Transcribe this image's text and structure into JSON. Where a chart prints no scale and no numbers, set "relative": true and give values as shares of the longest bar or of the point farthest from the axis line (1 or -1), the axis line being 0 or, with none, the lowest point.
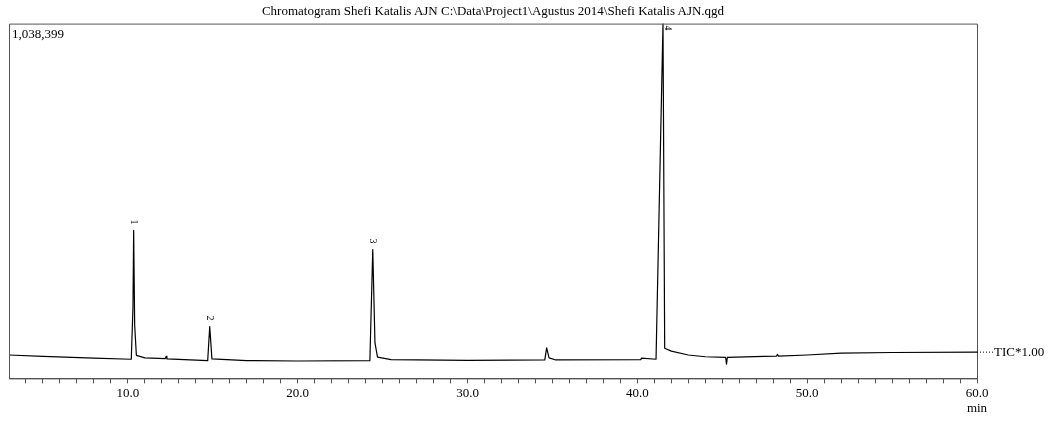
{
  "chart_data": {
    "type": "line",
    "title": "Chromatogram Shefi Katalis AJN C:\\Data\\Project1\\Agustus 2014\\Shefi Katalis AJN.qgd",
    "xlabel": "min",
    "relative": true,
    "marker": "none",
    "xlim": [
      3,
      60
    ],
    "xticks": [
      {
        "value": 4,
        "label": null
      },
      {
        "value": 5,
        "label": null
      },
      {
        "value": 6,
        "label": null
      },
      {
        "value": 7,
        "label": null
      },
      {
        "value": 8,
        "label": null
      },
      {
        "value": 9,
        "label": null
      },
      {
        "value": 10,
        "label": "10.0"
      },
      {
        "value": 11,
        "label": null
      },
      {
        "value": 12,
        "label": null
      },
      {
        "value": 13,
        "label": null
      },
      {
        "value": 14,
        "label": null
      },
      {
        "value": 15,
        "label": null
      },
      {
        "value": 16,
        "label": null
      },
      {
        "value": 17,
        "label": null
      },
      {
        "value": 18,
        "label": null
      },
      {
        "value": 19,
        "label": null
      },
      {
        "value": 20,
        "label": "20.0"
      },
      {
        "value": 21,
        "label": null
      },
      {
        "value": 22,
        "label": null
      },
      {
        "value": 23,
        "label": null
      },
      {
        "value": 24,
        "label": null
      },
      {
        "value": 25,
        "label": null
      },
      {
        "value": 26,
        "label": null
      },
      {
        "value": 27,
        "label": null
      },
      {
        "value": 28,
        "label": null
      },
      {
        "value": 29,
        "label": null
      },
      {
        "value": 30,
        "label": "30.0"
      },
      {
        "value": 31,
        "label": null
      },
      {
        "value": 32,
        "label": null
      },
      {
        "value": 33,
        "label": null
      },
      {
        "value": 34,
        "label": null
      },
      {
        "value": 35,
        "label": null
      },
      {
        "value": 36,
        "label": null
      },
      {
        "value": 37,
        "label": null
      },
      {
        "value": 38,
        "label": null
      },
      {
        "value": 39,
        "label": null
      },
      {
        "value": 40,
        "label": "40.0"
      },
      {
        "value": 41,
        "label": null
      },
      {
        "value": 42,
        "label": null
      },
      {
        "value": 43,
        "label": null
      },
      {
        "value": 44,
        "label": null
      },
      {
        "value": 45,
        "label": null
      },
      {
        "value": 46,
        "label": null
      },
      {
        "value": 47,
        "label": null
      },
      {
        "value": 48,
        "label": null
      },
      {
        "value": 49,
        "label": null
      },
      {
        "value": 50,
        "label": "50.0"
      },
      {
        "value": 51,
        "label": null
      },
      {
        "value": 52,
        "label": null
      },
      {
        "value": 53,
        "label": null
      },
      {
        "value": 54,
        "label": null
      },
      {
        "value": 55,
        "label": null
      },
      {
        "value": 56,
        "label": null
      },
      {
        "value": 57,
        "label": null
      },
      {
        "value": 58,
        "label": null
      },
      {
        "value": 59,
        "label": null
      },
      {
        "value": 60,
        "label": "60.0"
      }
    ],
    "x": [
      3,
      5,
      8,
      10.2,
      10.3,
      10.34,
      10.4,
      10.5,
      11,
      12.2,
      12.25,
      12.3,
      14.7,
      14.82,
      14.95,
      17,
      20,
      24.25,
      24.42,
      24.55,
      24.7,
      25.5,
      30,
      34.55,
      34.66,
      34.8,
      35.2,
      40.2,
      40.25,
      41.1,
      41.51,
      41.61,
      42,
      43,
      44,
      45.2,
      45.25,
      45.3,
      48.2,
      48.25,
      48.3,
      50,
      52,
      55,
      60
    ],
    "series": [
      {
        "name": "TIC*1.00",
        "color": "#000000",
        "values": [
          0.066,
          0.062,
          0.057,
          0.054,
          0.2,
          0.417,
          0.15,
          0.065,
          0.058,
          0.056,
          0.062,
          0.055,
          0.05,
          0.146,
          0.055,
          0.05,
          0.049,
          0.05,
          0.363,
          0.1,
          0.06,
          0.053,
          0.051,
          0.052,
          0.086,
          0.058,
          0.052,
          0.053,
          0.057,
          0.054,
          1,
          0.085,
          0.077,
          0.066,
          0.061,
          0.059,
          0.04,
          0.059,
          0.063,
          0.068,
          0.063,
          0.066,
          0.071,
          0.073,
          0.074
        ]
      }
    ],
    "annotations": [
      "1,038,399",
      {
        "text": "1",
        "x": 10.34,
        "y": 0.417
      },
      {
        "text": "2",
        "x": 14.82,
        "y": 0.146
      },
      {
        "text": "3",
        "x": 24.42,
        "y": 0.363
      },
      {
        "text": "4",
        "x": 41.51,
        "y": 1
      }
    ]
  }
}
